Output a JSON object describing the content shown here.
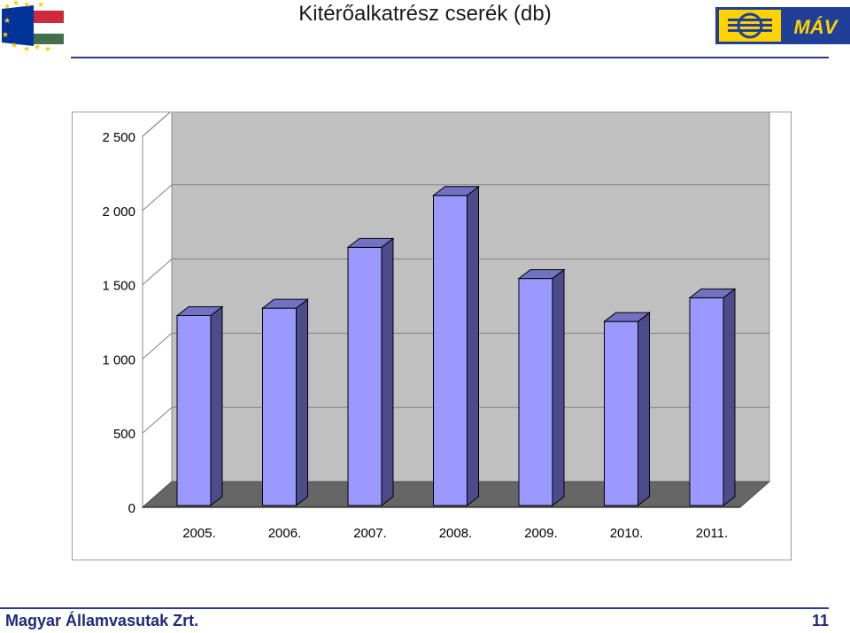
{
  "slide": {
    "title": "Kitérőalkatrész cserék (db)",
    "footer_company": "Magyar Államvasutak Zrt.",
    "page_number": "11"
  },
  "logos": {
    "left": {
      "icon": "eu-hungary-flag-logo",
      "colors": [
        "#003399",
        "#ffcc00",
        "#cd2a3e",
        "#ffffff",
        "#436f4d"
      ]
    },
    "right": {
      "icon": "mav-logo",
      "text": "MÁV",
      "colors": [
        "#1f3f99",
        "#ffd200"
      ]
    }
  },
  "chart_data": {
    "type": "bar",
    "categories": [
      "2005.",
      "2006.",
      "2007.",
      "2008.",
      "2009.",
      "2010.",
      "2011."
    ],
    "values": [
      1280,
      1330,
      1740,
      2090,
      1530,
      1240,
      1400
    ],
    "ylim": [
      0,
      2500
    ],
    "yticks": [
      0,
      500,
      1000,
      1500,
      2000,
      2500
    ],
    "ytick_labels": [
      "0",
      "500",
      "1 000",
      "1 500",
      "2 000",
      "2 500"
    ],
    "title": "",
    "xlabel": "",
    "ylabel": "",
    "grid": true,
    "style": "3d",
    "colors": {
      "bar_front": "#9999ff",
      "bar_side": "#4c4c8c",
      "bar_top": "#7272c2",
      "back_wall": "#c0c0c0",
      "floor": "#666666"
    }
  }
}
